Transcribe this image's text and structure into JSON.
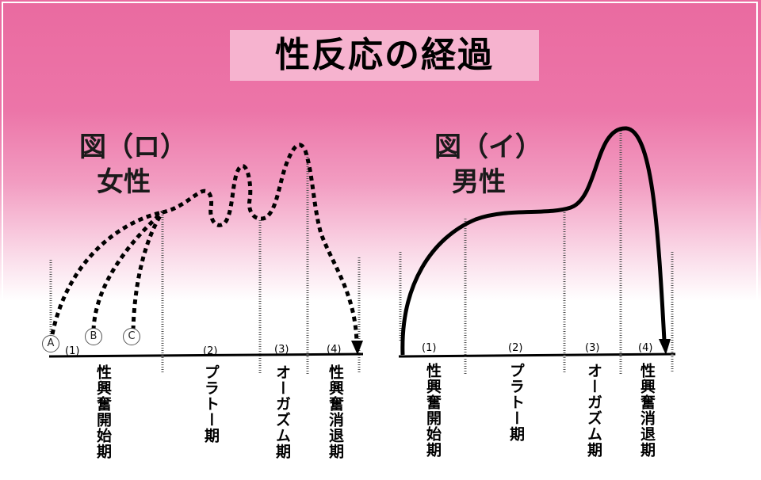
{
  "title": "性反応の経過",
  "female": {
    "fig": "図（ロ）",
    "label": "女性",
    "stages": [
      {
        "num": "(1)",
        "name": "性興奮開始期"
      },
      {
        "num": "(2)",
        "name": "プラトー期"
      },
      {
        "num": "(3)",
        "name": "オーガズム期"
      },
      {
        "num": "(4)",
        "name": "性興奮消退期"
      }
    ],
    "points": [
      "A",
      "B",
      "C"
    ]
  },
  "male": {
    "fig": "図（イ）",
    "label": "男性",
    "stages": [
      {
        "num": "(1)",
        "name": "性興奮開始期"
      },
      {
        "num": "(2)",
        "name": "プラトー期"
      },
      {
        "num": "(3)",
        "name": "オーガズム期"
      },
      {
        "num": "(4)",
        "name": "性興奮消退期"
      }
    ]
  },
  "colors": {
    "curve": "#000000",
    "background_top": "#ea6aa0",
    "title_box": "#f6b3cf"
  }
}
